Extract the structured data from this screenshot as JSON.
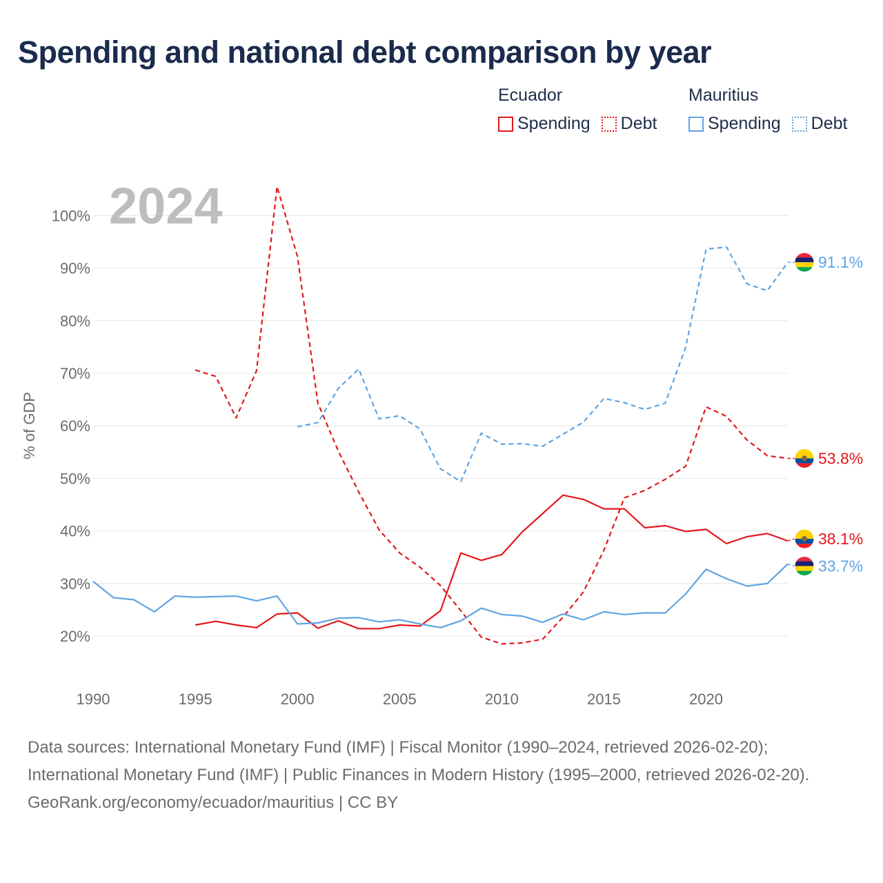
{
  "title": "Spending and national debt comparison by year",
  "legend": {
    "ecuador": {
      "name": "Ecuador",
      "spending_label": "Spending",
      "debt_label": "Debt",
      "color": "#e3171b"
    },
    "mauritius": {
      "name": "Mauritius",
      "spending_label": "Spending",
      "debt_label": "Debt",
      "color": "#5ea4e3"
    }
  },
  "year_label": "2024",
  "footer": {
    "sources": "Data sources: International Monetary Fund (IMF) | Fiscal Monitor (1990–2024, retrieved 2026-02-20); International Monetary Fund (IMF) | Public Finances in Modern History (1995–2000, retrieved 2026-02-20).",
    "credit": "GeoRank.org/economy/ecuador/mauritius | CC BY"
  },
  "chart_data": {
    "type": "line",
    "title": "Spending and national debt comparison by year",
    "xlabel": "",
    "ylabel": "% of GDP",
    "xlim": [
      1990,
      2024
    ],
    "ylim": [
      10,
      110
    ],
    "x_ticks": [
      "1990",
      "1995",
      "2000",
      "2005",
      "2010",
      "2015",
      "2020"
    ],
    "y_ticks": [
      {
        "value": 20,
        "label": "20%"
      },
      {
        "value": 30,
        "label": "30%"
      },
      {
        "value": 40,
        "label": "40%"
      },
      {
        "value": 50,
        "label": "50%"
      },
      {
        "value": 60,
        "label": "60%"
      },
      {
        "value": 70,
        "label": "70%"
      },
      {
        "value": 80,
        "label": "80%"
      },
      {
        "value": 90,
        "label": "90%"
      },
      {
        "value": 100,
        "label": "100%"
      }
    ],
    "grid": true,
    "series": [
      {
        "name": "Ecuador Spending",
        "country": "Ecuador",
        "indicator": "Spending",
        "color": "#e3171b",
        "dash": "solid",
        "end_label": "38.1%",
        "x": [
          1995,
          1996,
          1997,
          1998,
          1999,
          2000,
          2001,
          2002,
          2003,
          2004,
          2005,
          2006,
          2007,
          2008,
          2009,
          2010,
          2011,
          2012,
          2013,
          2014,
          2015,
          2016,
          2017,
          2018,
          2019,
          2020,
          2021,
          2022,
          2023,
          2024
        ],
        "values": [
          22.1,
          22.8,
          22.1,
          21.6,
          24.2,
          24.4,
          21.5,
          22.9,
          21.4,
          21.4,
          22.1,
          21.9,
          24.8,
          35.8,
          34.4,
          35.5,
          39.8,
          43.3,
          46.8,
          46.0,
          44.2,
          44.2,
          40.6,
          41.0,
          39.9,
          40.3,
          37.6,
          38.9,
          39.5,
          38.1
        ]
      },
      {
        "name": "Ecuador Debt",
        "country": "Ecuador",
        "indicator": "Debt",
        "color": "#e3171b",
        "dash": "dashed",
        "end_label": "53.8%",
        "x": [
          1995,
          1996,
          1997,
          1998,
          1999,
          2000,
          2001,
          2002,
          2003,
          2004,
          2005,
          2006,
          2007,
          2008,
          2009,
          2010,
          2011,
          2012,
          2013,
          2014,
          2015,
          2016,
          2017,
          2018,
          2019,
          2020,
          2021,
          2022,
          2023,
          2024
        ],
        "values": [
          70.6,
          69.4,
          61.5,
          70.5,
          105.5,
          92.2,
          64.3,
          55.2,
          47.4,
          40.2,
          35.8,
          33.1,
          29.6,
          24.8,
          19.8,
          18.5,
          18.7,
          19.4,
          23.6,
          28.4,
          36.3,
          46.3,
          47.7,
          49.8,
          52.3,
          63.6,
          61.8,
          57.3,
          54.3,
          53.8
        ]
      },
      {
        "name": "Mauritius Spending",
        "country": "Mauritius",
        "indicator": "Spending",
        "color": "#5ea4e3",
        "dash": "solid",
        "end_label": "33.7%",
        "x": [
          1990,
          1991,
          1992,
          1993,
          1994,
          1995,
          1996,
          1997,
          1998,
          1999,
          2000,
          2001,
          2002,
          2003,
          2004,
          2005,
          2006,
          2007,
          2008,
          2009,
          2010,
          2011,
          2012,
          2013,
          2014,
          2015,
          2016,
          2017,
          2018,
          2019,
          2020,
          2021,
          2022,
          2023,
          2024
        ],
        "values": [
          30.4,
          27.3,
          26.9,
          24.6,
          27.6,
          27.4,
          27.5,
          27.6,
          26.7,
          27.6,
          22.3,
          22.5,
          23.4,
          23.5,
          22.7,
          23.1,
          22.3,
          21.6,
          22.9,
          25.3,
          24.1,
          23.8,
          22.6,
          24.2,
          23.1,
          24.6,
          24.1,
          24.4,
          24.4,
          28.0,
          32.7,
          30.9,
          29.5,
          30.0,
          33.7
        ]
      },
      {
        "name": "Mauritius Debt",
        "country": "Mauritius",
        "indicator": "Debt",
        "color": "#5ea4e3",
        "dash": "dashed",
        "end_label": "91.1%",
        "x": [
          2000,
          2001,
          2002,
          2003,
          2004,
          2005,
          2006,
          2007,
          2008,
          2009,
          2010,
          2011,
          2012,
          2013,
          2014,
          2015,
          2016,
          2017,
          2018,
          2019,
          2020,
          2021,
          2022,
          2023,
          2024
        ],
        "values": [
          59.8,
          60.6,
          67.1,
          70.8,
          61.3,
          61.9,
          59.4,
          51.8,
          49.4,
          58.6,
          56.5,
          56.6,
          56.1,
          58.4,
          60.7,
          65.2,
          64.4,
          63.1,
          64.3,
          74.9,
          93.6,
          94.0,
          87.0,
          85.7,
          91.1
        ]
      }
    ]
  }
}
